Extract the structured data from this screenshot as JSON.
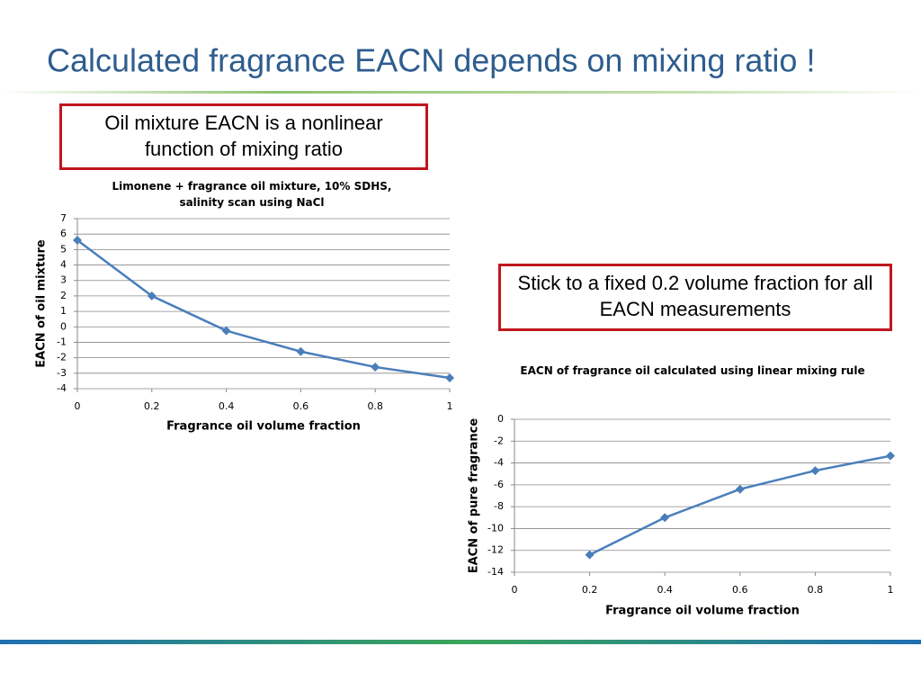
{
  "slide": {
    "title": "Calculated fragrance EACN depends on mixing ratio !",
    "callouts": [
      "Oil mixture EACN is a nonlinear function of mixing ratio",
      "Stick to a fixed 0.2 volume fraction for all EACN measurements"
    ]
  },
  "chart_data": [
    {
      "type": "line",
      "title": "Limonene + fragrance oil mixture, 10% SDHS, salinity scan using NaCl",
      "x_label": "Fragrance oil  volume  fraction",
      "y_label": "EACN of oil mixture",
      "x": [
        0,
        0.2,
        0.4,
        0.6,
        0.8,
        1
      ],
      "series": [
        {
          "color": "#4a7ebb",
          "values": [
            5.6,
            2.0,
            -0.25,
            -1.6,
            -2.6,
            -3.3
          ]
        }
      ],
      "xlim": [
        0,
        1
      ],
      "xticks": [
        0,
        0.2,
        0.4,
        0.6,
        0.8,
        1
      ],
      "ylim": [
        -4,
        7
      ],
      "yticks": [
        -4,
        -3,
        -2,
        -1,
        0,
        1,
        2,
        3,
        4,
        5,
        6,
        7
      ],
      "grid": true
    },
    {
      "type": "line",
      "title": "EACN of fragrance oil  calculated using linear mixing rule",
      "x_label": "Fragrance oil  volume fraction",
      "y_label": "EACN of pure fragrance",
      "x": [
        0.2,
        0.4,
        0.6,
        0.8,
        1
      ],
      "series": [
        {
          "color": "#4a7ebb",
          "values": [
            -12.4,
            -9.0,
            -6.4,
            -4.7,
            -3.35
          ]
        }
      ],
      "xlim": [
        0,
        1
      ],
      "xticks": [
        0,
        0.2,
        0.4,
        0.6,
        0.8,
        1
      ],
      "ylim": [
        -14,
        0
      ],
      "yticks": [
        -14,
        -12,
        -10,
        -8,
        -6,
        -4,
        -2,
        0
      ],
      "grid": true
    }
  ]
}
